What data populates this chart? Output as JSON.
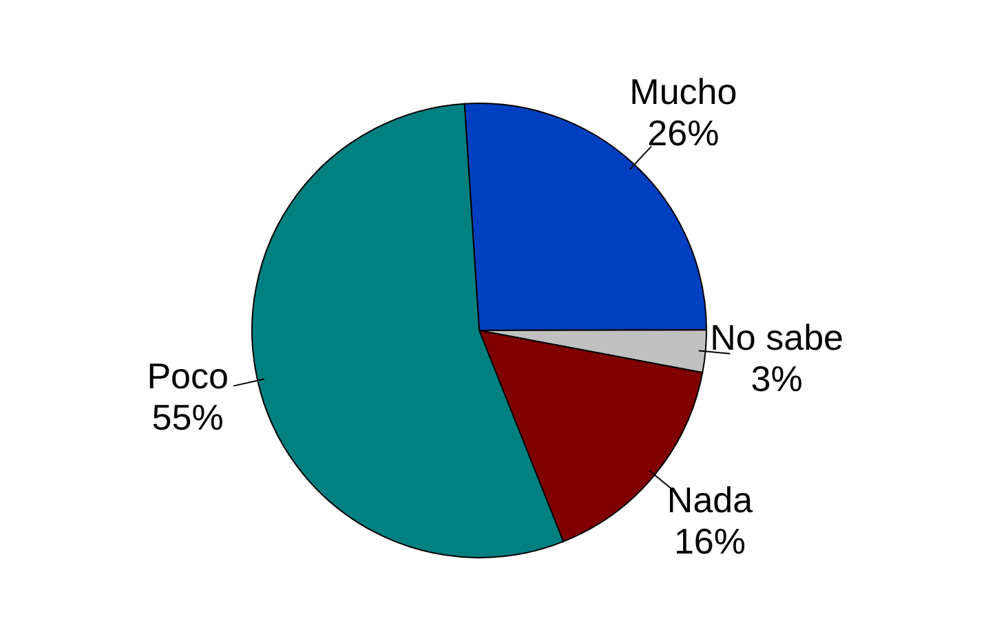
{
  "chart_data": {
    "type": "pie",
    "categories": [
      "Mucho",
      "No sabe",
      "Nada",
      "Poco"
    ],
    "values": [
      26,
      3,
      16,
      55
    ],
    "colors": [
      "#0040c0",
      "#c0c0c0",
      "#800000",
      "#008080"
    ],
    "value_labels": [
      "26%",
      "3%",
      "16%",
      "55%"
    ]
  }
}
